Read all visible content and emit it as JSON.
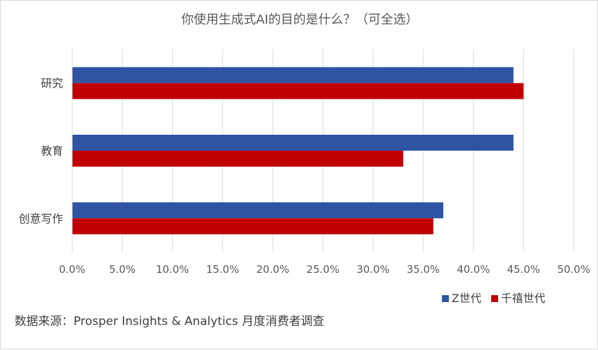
{
  "chart_data": {
    "type": "bar",
    "orientation": "horizontal",
    "title": "你使用生成式AI的目的是什么？（可全选）",
    "categories": [
      "研究",
      "教育",
      "创意写作"
    ],
    "series": [
      {
        "name": "Z世代",
        "values": [
          44,
          44,
          37
        ],
        "color": "#2f54a4"
      },
      {
        "name": "千禧世代",
        "values": [
          45,
          33,
          36
        ],
        "color": "#c00000"
      }
    ],
    "xlim": [
      0,
      50
    ],
    "x_ticks": [
      0,
      5,
      10,
      15,
      20,
      25,
      30,
      35,
      40,
      45,
      50
    ],
    "x_tick_labels": [
      "0.0%",
      "5.0%",
      "10.0%",
      "15.0%",
      "20.0%",
      "25.0%",
      "30.0%",
      "35.0%",
      "40.0%",
      "45.0%",
      "50.0%"
    ],
    "grid": true,
    "legend_position": "bottom-right",
    "source": "数据来源：Prosper Insights & Analytics 月度消费者调查"
  }
}
